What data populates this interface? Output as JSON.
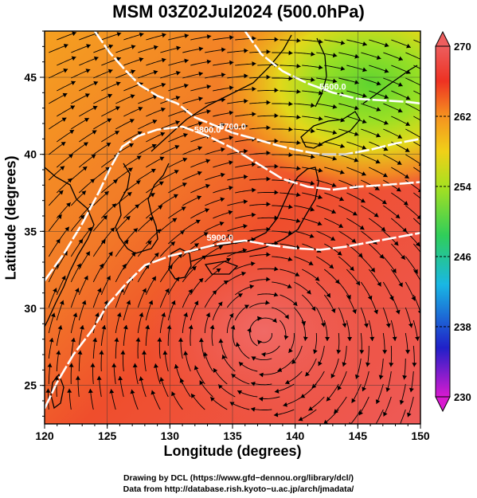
{
  "title": "MSM 03Z02Jul2024 (500.0hPa)",
  "map": {
    "xlabel": "Longitude (degrees)",
    "ylabel": "Latitude  (degrees)",
    "xlim": [
      120,
      150
    ],
    "ylim": [
      22.5,
      48
    ],
    "xticks": [
      "120",
      "125",
      "130",
      "135",
      "140",
      "145",
      "150"
    ],
    "yticks": [
      "25",
      "30",
      "35",
      "40",
      "45"
    ],
    "grid": true,
    "contours": [
      {
        "value": 5900,
        "label": "5900.0",
        "points": [
          [
            120,
            23.5
          ],
          [
            121,
            25.2
          ],
          [
            122.3,
            27
          ],
          [
            123.8,
            28.6
          ],
          [
            125,
            30.2
          ],
          [
            126.5,
            31.6
          ],
          [
            128,
            32.8
          ],
          [
            130,
            33.4
          ],
          [
            132,
            33.8
          ],
          [
            134,
            34.2
          ],
          [
            136,
            34.4
          ],
          [
            138,
            34.1
          ],
          [
            140,
            33.9
          ],
          [
            142,
            33.8
          ],
          [
            144,
            34
          ],
          [
            146,
            34.3
          ],
          [
            148,
            34.6
          ],
          [
            150,
            34.9
          ]
        ]
      },
      {
        "value": 5800,
        "label": "5800.0",
        "points": [
          [
            120,
            31.8
          ],
          [
            121.5,
            33.5
          ],
          [
            123,
            35.5
          ],
          [
            124.3,
            37.5
          ],
          [
            125.3,
            39.2
          ],
          [
            126.2,
            40.5
          ],
          [
            127.5,
            41.2
          ],
          [
            129,
            41.6
          ],
          [
            131,
            41.8
          ],
          [
            133,
            41.2
          ],
          [
            135,
            40.4
          ],
          [
            137,
            39.4
          ],
          [
            139,
            38.4
          ],
          [
            141,
            37.9
          ],
          [
            143,
            37.7
          ],
          [
            145,
            37.9
          ],
          [
            147,
            38
          ],
          [
            150,
            38.2
          ]
        ]
      },
      {
        "value": 5700,
        "label": "5700.0",
        "points": [
          [
            124,
            48
          ],
          [
            125.2,
            46.6
          ],
          [
            126.4,
            45.5
          ],
          [
            127.6,
            44.5
          ],
          [
            129,
            43.8
          ],
          [
            130.6,
            43.3
          ],
          [
            132,
            42.4
          ],
          [
            133.5,
            41.9
          ],
          [
            135,
            41.4
          ],
          [
            136.8,
            41
          ],
          [
            138.5,
            40.6
          ],
          [
            140,
            40.3
          ],
          [
            142,
            40
          ],
          [
            144,
            40
          ],
          [
            146,
            40.3
          ],
          [
            148,
            40.7
          ],
          [
            150,
            41
          ]
        ]
      },
      {
        "value": 5600,
        "label": "5600.0",
        "points": [
          [
            136,
            48
          ],
          [
            137.3,
            46.5
          ],
          [
            139,
            45.4
          ],
          [
            141,
            44.6
          ],
          [
            143,
            44
          ],
          [
            145,
            43.6
          ],
          [
            147,
            43.5
          ],
          [
            149,
            43.4
          ],
          [
            150,
            43.3
          ]
        ]
      }
    ],
    "warm_pool_center": [
      137.5,
      28.5
    ]
  },
  "colorbar": {
    "min": 230,
    "max": 270,
    "ticks": [
      "270",
      "262",
      "254",
      "246",
      "238",
      "230"
    ],
    "stops": [
      "#d81ad0",
      "#2020c8",
      "#19b7e4",
      "#2fce5a",
      "#a8e020",
      "#f0d018",
      "#f59220",
      "#ee3222",
      "#ee5e5e"
    ]
  },
  "credits": {
    "line1": "Drawing by DCL (https://www.gfd−dennou.org/library/dcl/)",
    "line2": "Data from http://database.rish.kyoto−u.ac.jp/arch/jmadata/"
  }
}
